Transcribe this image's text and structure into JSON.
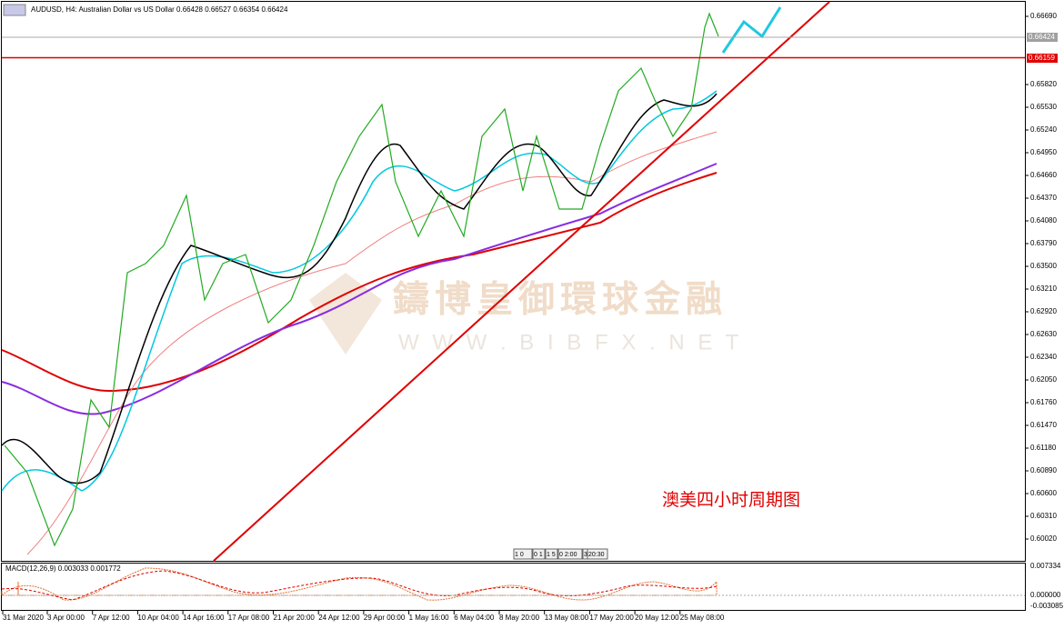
{
  "header": {
    "text": "AUDUSD, H4:  Australian Dollar vs US Dollar  0.66428 0.66527 0.66354 0.66424"
  },
  "price_axis": [
    "0.66690",
    "0.65820",
    "0.65530",
    "0.65240",
    "0.64950",
    "0.64660",
    "0.64370",
    "0.64080",
    "0.63790",
    "0.63500",
    "0.63210",
    "0.62920",
    "0.62630",
    "0.62340",
    "0.62050",
    "0.61760",
    "0.61470",
    "0.61180",
    "0.60890",
    "0.60600",
    "0.60310",
    "0.60020"
  ],
  "current_price": "0.66424",
  "level_price": "0.66159",
  "watermark": {
    "name": "鑄博皇御環球金融",
    "url": "W W W . B I B F X . N E T"
  },
  "annotation": "澳美四小时周期图",
  "timeframe_buttons": [
    "1 0",
    "0 1",
    "1 5",
    "0 2:00",
    "3",
    "20:30"
  ],
  "macd": {
    "title": "MACD(12,26,9) 0.003033 0.001772",
    "axis": [
      "0.007334",
      "0.000000",
      "-0.003085"
    ]
  },
  "time_axis": [
    "31 Mar 2020",
    "3 Apr 00:00",
    "7 Apr 12:00",
    "10 Apr 04:00",
    "14 Apr 16:00",
    "17 Apr 08:00",
    "21 Apr 20:00",
    "24 Apr 12:00",
    "29 Apr 00:00",
    "1 May 16:00",
    "6 May 04:00",
    "8 May 20:00",
    "13 May 08:00",
    "17 May 20:00",
    "20 May 12:00",
    "25 May 08:00"
  ]
}
